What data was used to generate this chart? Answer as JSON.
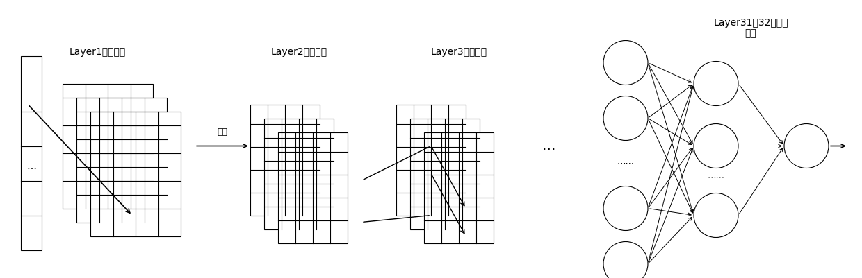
{
  "bg_color": "#ffffff",
  "fig_width": 12.4,
  "fig_height": 4.01,
  "layer1_label": "Layer1：卷积层",
  "layer2_label": "Layer2：池化层",
  "layer3_label": "Layer3：卷积层",
  "layer31_label": "Layer31、32：全连\n接层",
  "pooling_arrow_label": "池化",
  "dots_label": "…",
  "dots_label2": "…",
  "dots_label3": "⋯⋯",
  "dots_label4": "⋯⋯"
}
